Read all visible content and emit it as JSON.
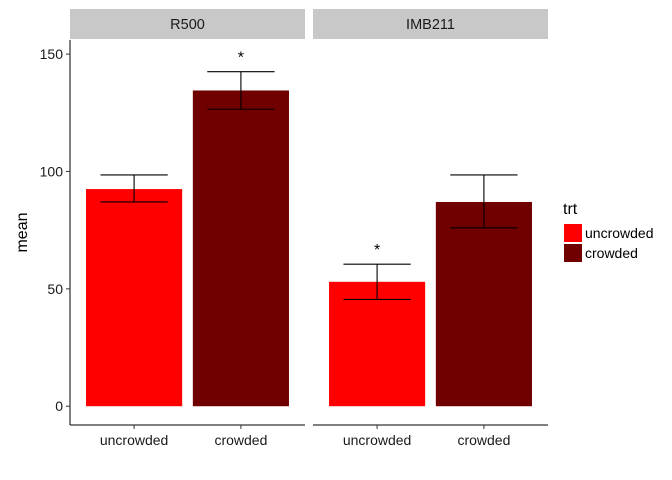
{
  "chart_data": {
    "type": "bar",
    "ylabel": "mean",
    "xlabel": "",
    "ylim": [
      -8,
      156
    ],
    "yticks": [
      0,
      50,
      100,
      150
    ],
    "categories": [
      "uncrowded",
      "crowded"
    ],
    "colors": {
      "uncrowded": "#ff0000",
      "crowded": "#700000"
    },
    "legend": {
      "title": "trt",
      "position": "right",
      "entries": [
        {
          "label": "uncrowded",
          "color": "#ff0000"
        },
        {
          "label": "crowded",
          "color": "#700000"
        }
      ]
    },
    "panels": [
      {
        "strip": "R500",
        "bars": [
          {
            "category": "uncrowded",
            "value": 92.5,
            "err_low": 87,
            "err_high": 98.5,
            "annotation": ""
          },
          {
            "category": "crowded",
            "value": 134.5,
            "err_low": 126.5,
            "err_high": 142.5,
            "annotation": "*"
          }
        ]
      },
      {
        "strip": "IMB211",
        "bars": [
          {
            "category": "uncrowded",
            "value": 53,
            "err_low": 45.5,
            "err_high": 60.5,
            "annotation": "*"
          },
          {
            "category": "crowded",
            "value": 87,
            "err_low": 76,
            "err_high": 98.5,
            "annotation": ""
          }
        ]
      }
    ]
  }
}
